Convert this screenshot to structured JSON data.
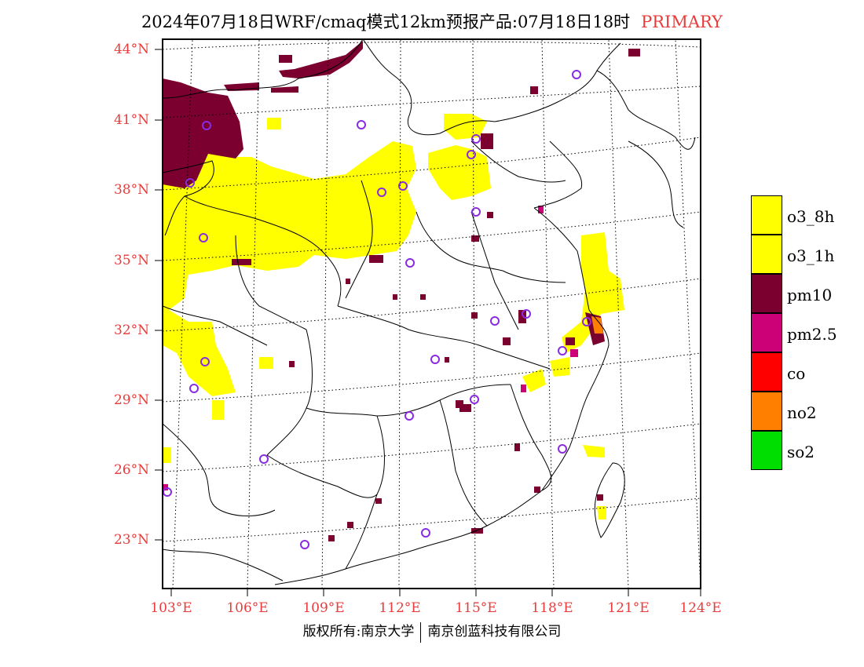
{
  "title": {
    "main": "2024年07月18日WRF/cmaq模式12km预报产品:07月18日18时",
    "tag": "PRIMARY"
  },
  "colors": {
    "title_tag": "#e83c3c",
    "axis_labels": "#e83c3c",
    "o3": "#ffff00",
    "pm10": "#7b0030",
    "pm25": "#cc0077",
    "co": "#ff0000",
    "no2": "#ff7f00",
    "so2": "#00dd00",
    "station_marker": "#8a2be2"
  },
  "lat_labels": [
    "44°N",
    "41°N",
    "38°N",
    "35°N",
    "32°N",
    "29°N",
    "26°N",
    "23°N"
  ],
  "lon_labels": [
    "103°E",
    "106°E",
    "109°E",
    "112°E",
    "115°E",
    "118°E",
    "121°E",
    "124°E"
  ],
  "legend": [
    {
      "label": "o3_8h",
      "color": "#ffff00"
    },
    {
      "label": "o3_1h",
      "color": "#ffff00"
    },
    {
      "label": "pm10",
      "color": "#7b0030"
    },
    {
      "label": "pm2.5",
      "color": "#cc0077"
    },
    {
      "label": "co",
      "color": "#ff0000"
    },
    {
      "label": "no2",
      "color": "#ff7f00"
    },
    {
      "label": "so2",
      "color": "#00dd00"
    }
  ],
  "footer": {
    "left": "版权所有:南京大学",
    "right": "南京创蓝科技有限公司"
  }
}
